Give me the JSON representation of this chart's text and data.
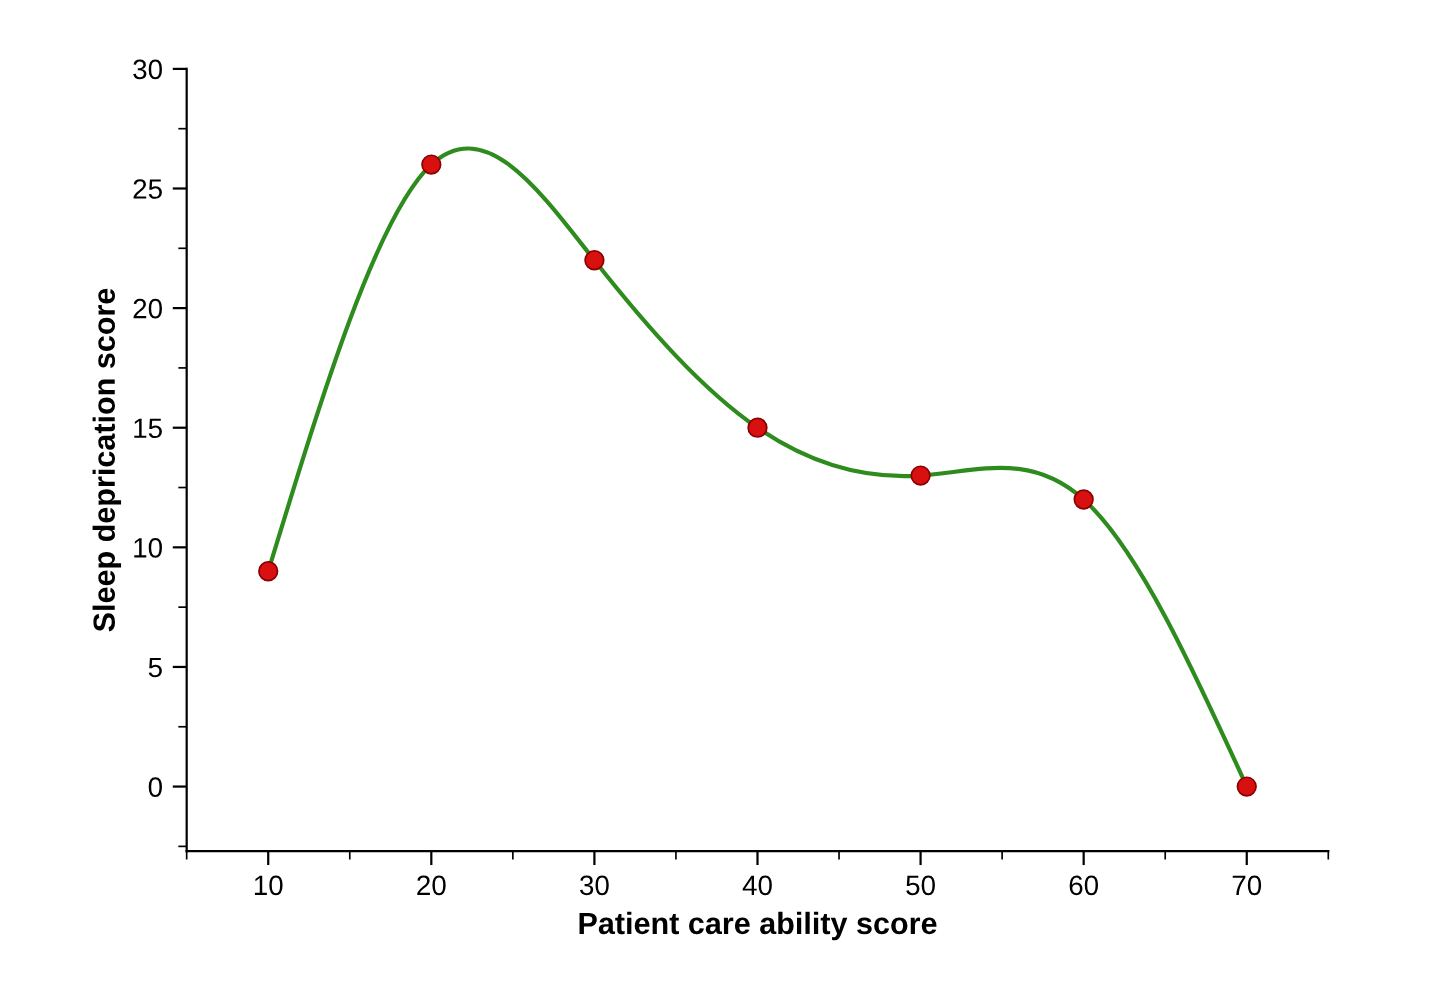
{
  "chart_data": {
    "type": "line",
    "xlabel": "Patient care ability score",
    "ylabel": "Sleep deprication score",
    "x": [
      10,
      20,
      30,
      40,
      50,
      60,
      70
    ],
    "series": [
      {
        "color": "#2e8b1e",
        "colors": [
          "#d81010",
          "#d81010",
          "#d81010",
          "#d81010",
          "#d81010",
          "#d81010",
          "#d81010"
        ],
        "values": [
          9,
          26,
          22,
          15,
          13,
          12,
          0
        ]
      }
    ],
    "xlim": [
      5,
      75
    ],
    "xticks": [
      10,
      20,
      30,
      40,
      50,
      60,
      70
    ],
    "ylim": [
      -2.7,
      30
    ],
    "yticks": [
      0,
      5,
      10,
      15,
      20,
      25,
      30
    ],
    "marker": "circle",
    "line_style": "solid",
    "grid": false,
    "legend": false
  }
}
